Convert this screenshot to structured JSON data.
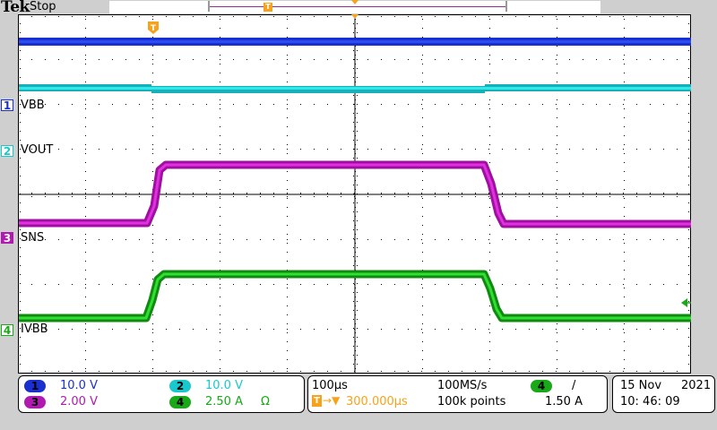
{
  "header": {
    "brand": "Tek",
    "acquisition_state": "Stop"
  },
  "colors": {
    "ch1": "#1a2fd0",
    "ch2": "#18c8cc",
    "ch3": "#b01ab0",
    "ch4": "#18a818",
    "trigger": "#f7a21b"
  },
  "channels": [
    {
      "number": "1",
      "name": "VBB",
      "scale": "10.0 V",
      "color": "#1a2fd0"
    },
    {
      "number": "2",
      "name": "VOUT",
      "scale": "10.0 V",
      "color": "#18c8cc"
    },
    {
      "number": "3",
      "name": "SNS",
      "scale": "2.00 V",
      "color": "#b01ab0"
    },
    {
      "number": "4",
      "name": "IVBB",
      "scale": "2.50 A",
      "color": "#18a818",
      "termination": "Ω"
    }
  ],
  "timebase": {
    "scale": "100µs",
    "sample_rate": "100MS/s",
    "record_length": "100k points",
    "trigger_position_label": "T",
    "trigger_delay": "300.000µs"
  },
  "trigger": {
    "source": "4",
    "slope": "/",
    "level": "1.50 A"
  },
  "datetime": {
    "date": "15 Nov",
    "year": "2021",
    "time": "10: 46: 09"
  },
  "markers": {
    "trigger_time_marker": "T"
  }
}
